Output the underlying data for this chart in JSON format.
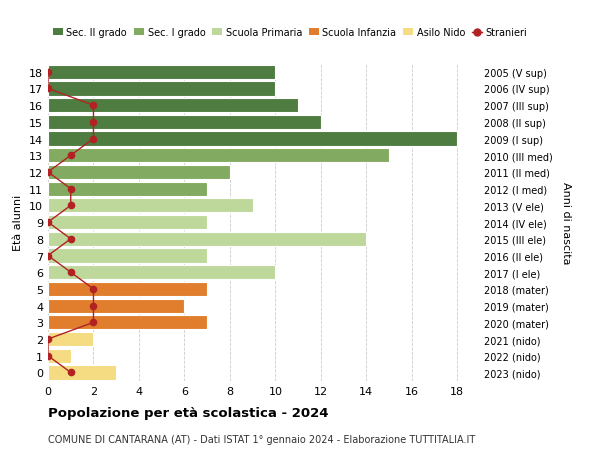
{
  "ages": [
    18,
    17,
    16,
    15,
    14,
    13,
    12,
    11,
    10,
    9,
    8,
    7,
    6,
    5,
    4,
    3,
    2,
    1,
    0
  ],
  "right_labels": [
    "2005 (V sup)",
    "2006 (IV sup)",
    "2007 (III sup)",
    "2008 (II sup)",
    "2009 (I sup)",
    "2010 (III med)",
    "2011 (II med)",
    "2012 (I med)",
    "2013 (V ele)",
    "2014 (IV ele)",
    "2015 (III ele)",
    "2016 (II ele)",
    "2017 (I ele)",
    "2018 (mater)",
    "2019 (mater)",
    "2020 (mater)",
    "2021 (nido)",
    "2022 (nido)",
    "2023 (nido)"
  ],
  "bar_values": [
    10,
    10,
    11,
    12,
    18,
    15,
    8,
    7,
    9,
    7,
    14,
    7,
    10,
    7,
    6,
    7,
    2,
    1,
    3
  ],
  "bar_colors": [
    "#4e7c41",
    "#4e7c41",
    "#4e7c41",
    "#4e7c41",
    "#4e7c41",
    "#82aa60",
    "#82aa60",
    "#82aa60",
    "#bdd89a",
    "#bdd89a",
    "#bdd89a",
    "#bdd89a",
    "#bdd89a",
    "#e07e2e",
    "#e07e2e",
    "#e07e2e",
    "#f5dc82",
    "#f5dc82",
    "#f5dc82"
  ],
  "stranieri_values": [
    0,
    0,
    2,
    2,
    2,
    1,
    0,
    1,
    1,
    0,
    1,
    0,
    1,
    2,
    2,
    2,
    0,
    0,
    1
  ],
  "title_bold": "Popolazione per età scolastica - 2024",
  "subtitle": "COMUNE DI CANTARANA (AT) - Dati ISTAT 1° gennaio 2024 - Elaborazione TUTTITALIA.IT",
  "ylabel_left": "Età alunni",
  "ylabel_right": "Anni di nascita",
  "xlim": [
    0,
    19
  ],
  "xticks": [
    0,
    2,
    4,
    6,
    8,
    10,
    12,
    14,
    16,
    18
  ],
  "legend_labels": [
    "Sec. II grado",
    "Sec. I grado",
    "Scuola Primaria",
    "Scuola Infanzia",
    "Asilo Nido",
    "Stranieri"
  ],
  "legend_colors": [
    "#4e7c41",
    "#82aa60",
    "#bdd89a",
    "#e07e2e",
    "#f5dc82",
    "#b22222"
  ],
  "stranieri_color": "#b22222",
  "background_color": "#ffffff",
  "grid_color": "#cccccc",
  "bar_edge_color": "#ffffff"
}
